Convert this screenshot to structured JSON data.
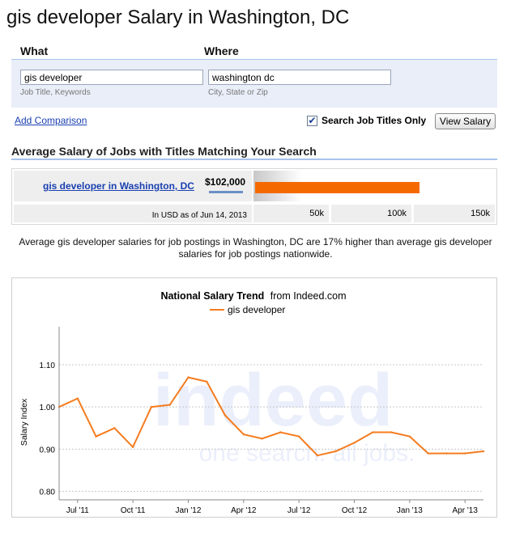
{
  "page": {
    "title": "gis developer Salary in Washington, DC"
  },
  "search": {
    "what_label": "What",
    "where_label": "Where",
    "what_value": "gis developer",
    "where_value": "washington dc",
    "what_hint": "Job Title, Keywords",
    "where_hint": "City, State or Zip",
    "add_comparison": "Add Comparison",
    "job_titles_only_label": "Search Job Titles Only",
    "job_titles_only_checked": true,
    "view_salary_button": "View Salary"
  },
  "salary_summary": {
    "section_title": "Average Salary of Jobs with Titles Matching Your Search",
    "job_link": "gis developer in Washington, DC",
    "amount": "$102,000",
    "amount_value": 102000,
    "scale_max": 150000,
    "currency_note": "In USD as of Jun 14, 2013",
    "ticks": [
      "50k",
      "100k",
      "150k"
    ],
    "bar_color": "#f56a00"
  },
  "comparison_text": "Average gis developer salaries for job postings in Washington, DC are 17% higher than average gis developer salaries for job postings nationwide.",
  "chart_data": {
    "type": "line",
    "title_bold": "National Salary Trend",
    "title_suffix": "from Indeed.com",
    "ylabel": "Salary Index",
    "ylim": [
      0.78,
      1.19
    ],
    "yticks": [
      "0.80",
      "0.90",
      "1.00",
      "1.10"
    ],
    "ytick_values": [
      0.8,
      0.9,
      1.0,
      1.1
    ],
    "xtick_labels": [
      "Jul '11",
      "Oct '11",
      "Jan '12",
      "Apr '12",
      "Jul '12",
      "Oct '12",
      "Jan '13",
      "Apr '13"
    ],
    "grid": true,
    "legend": "top-center",
    "watermark_text": [
      "indeed",
      "one search. all jobs."
    ],
    "series": [
      {
        "name": "gis developer",
        "color": "#f57c1f",
        "x": [
          "Jun 2011",
          "Jul 2011",
          "Aug 2011",
          "Sep 2011",
          "Oct 2011",
          "Nov 2011",
          "Dec 2011",
          "Jan 2012",
          "Feb 2012",
          "Mar 2012",
          "Apr 2012",
          "May 2012",
          "Jun 2012",
          "Jul 2012",
          "Aug 2012",
          "Sep 2012",
          "Oct 2012",
          "Nov 2012",
          "Dec 2012",
          "Jan 2013",
          "Feb 2013",
          "Mar 2013",
          "Apr 2013",
          "May 2013"
        ],
        "values": [
          1.0,
          1.02,
          0.93,
          0.95,
          0.905,
          1.0,
          1.005,
          1.07,
          1.06,
          0.98,
          0.935,
          0.925,
          0.94,
          0.93,
          0.885,
          0.895,
          0.915,
          0.94,
          0.94,
          0.93,
          0.89,
          0.89,
          0.89,
          0.895
        ]
      }
    ]
  }
}
